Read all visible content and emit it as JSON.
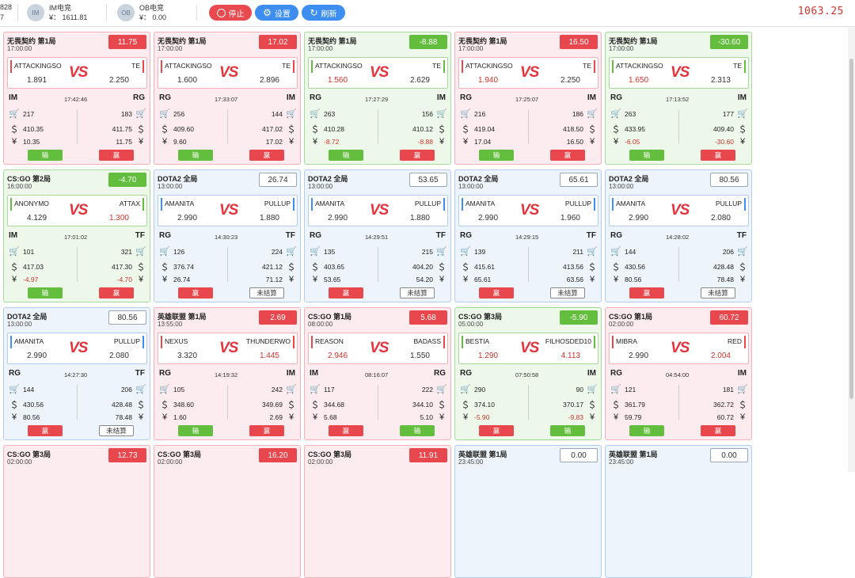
{
  "topbar": {
    "prev_cut_top": "828",
    "prev_cut_bottom": "7",
    "accounts": [
      {
        "avatar": "IM",
        "name": "IM电竞",
        "balance": "¥： 1611.81"
      },
      {
        "avatar": "OB",
        "name": "OB电竞",
        "balance": "¥： 0.00"
      }
    ],
    "buttons": {
      "stop": "停止",
      "settings": "设置",
      "refresh": "刷新"
    },
    "total": "1063.25"
  },
  "colors": {
    "red": "#e8474d",
    "green": "#62be3c",
    "blue": "#3d8ef0"
  },
  "cards": [
    {
      "theme": "red",
      "title": "无畏契约 第1局",
      "time": "17:00:00",
      "pl": "11.75",
      "pl_style": "red",
      "team1": "ATTACKINGSO",
      "team2": "TE",
      "odds1": "1.891",
      "odds2": "2.250",
      "odds1_red": false,
      "bar": "red",
      "left_plat": "IM",
      "right_plat": "RG",
      "clock": "17:42:46",
      "l1": "217",
      "l2": "410.35",
      "l3": "10.35",
      "r1": "183",
      "r2": "411.75",
      "r3": "11.75",
      "btn_left": "输",
      "btn_right": "赢"
    },
    {
      "theme": "red",
      "title": "无畏契约 第1局",
      "time": "17:00:00",
      "pl": "17.02",
      "pl_style": "red",
      "team1": "ATTACKINGSO",
      "team2": "TE",
      "odds1": "1.600",
      "odds2": "2.896",
      "odds1_red": false,
      "bar": "red",
      "left_plat": "RG",
      "right_plat": "IM",
      "clock": "17:33:07",
      "l1": "256",
      "l2": "409.60",
      "l3": "9.60",
      "r1": "144",
      "r2": "417.02",
      "r3": "17.02",
      "btn_left": "输",
      "btn_right": "赢"
    },
    {
      "theme": "green",
      "title": "无畏契约 第1局",
      "time": "17:00:00",
      "pl": "-8.88",
      "pl_style": "green",
      "team1": "ATTACKINGSO",
      "team2": "TE",
      "odds1": "1.560",
      "odds2": "2.629",
      "odds1_red": true,
      "bar": "green",
      "left_plat": "RG",
      "right_plat": "IM",
      "clock": "17:27:29",
      "l1": "263",
      "l2": "410.28",
      "l3": "-8.72",
      "r1": "156",
      "r2": "410.12",
      "r3": "-8.88",
      "btn_left": "输",
      "btn_right": "赢"
    },
    {
      "theme": "red",
      "title": "无畏契约 第1局",
      "time": "17:00:00",
      "pl": "16.50",
      "pl_style": "red",
      "team1": "ATTACKINGSO",
      "team2": "TE",
      "odds1": "1.940",
      "odds2": "2.250",
      "odds1_red": true,
      "bar": "red",
      "left_plat": "RG",
      "right_plat": "IM",
      "clock": "17:25:07",
      "l1": "216",
      "l2": "419.04",
      "l3": "17.04",
      "r1": "186",
      "r2": "418.50",
      "r3": "16.50",
      "btn_left": "输",
      "btn_right": "赢"
    },
    {
      "theme": "green",
      "title": "无畏契约 第1局",
      "time": "17:00:00",
      "pl": "-30.60",
      "pl_style": "green",
      "team1": "ATTACKINGSO",
      "team2": "TE",
      "odds1": "1.650",
      "odds2": "2.313",
      "odds1_red": true,
      "bar": "green",
      "left_plat": "RG",
      "right_plat": "IM",
      "clock": "17:13:52",
      "l1": "263",
      "l2": "433.95",
      "l3": "-6.05",
      "r1": "177",
      "r2": "409.40",
      "r3": "-30.60",
      "btn_left": "输",
      "btn_right": "赢"
    },
    {
      "theme": "green",
      "title": "CS:GO 第2局",
      "time": "16:00:00",
      "pl": "-4.70",
      "pl_style": "green",
      "team1": "ANONYMO",
      "team2": "ATTAX",
      "odds1": "4.129",
      "odds2": "1.300",
      "odds1_red": false,
      "odds2_red": true,
      "bar": "green",
      "left_plat": "IM",
      "right_plat": "TF",
      "clock": "17:01:02",
      "l1": "101",
      "l2": "417.03",
      "l3": "-4.97",
      "r1": "321",
      "r2": "417.30",
      "r3": "-4.70",
      "btn_left": "输",
      "btn_right": "赢"
    },
    {
      "theme": "blue",
      "title": "DOTA2 全局",
      "time": "13:00:00",
      "pl": "26.74",
      "pl_style": "white",
      "team1": "AMANITA",
      "team2": "PULLUP",
      "odds1": "2.990",
      "odds2": "1.880",
      "odds1_red": false,
      "bar": "blue",
      "left_plat": "RG",
      "right_plat": "TF",
      "clock": "14:30:23",
      "l1": "126",
      "l2": "376.74",
      "l3": "26.74",
      "r1": "224",
      "r2": "421.12",
      "r3": "71.12",
      "btn_left": "赢",
      "btn_right": "未结算"
    },
    {
      "theme": "blue",
      "title": "DOTA2 全局",
      "time": "13:00:00",
      "pl": "53.65",
      "pl_style": "white",
      "team1": "AMANITA",
      "team2": "PULLUP",
      "odds1": "2.990",
      "odds2": "1.880",
      "odds1_red": false,
      "bar": "blue",
      "left_plat": "RG",
      "right_plat": "TF",
      "clock": "14:29:51",
      "l1": "135",
      "l2": "403.65",
      "l3": "53.65",
      "r1": "215",
      "r2": "404.20",
      "r3": "54.20",
      "btn_left": "赢",
      "btn_right": "未结算"
    },
    {
      "theme": "blue",
      "title": "DOTA2 全局",
      "time": "13:00:00",
      "pl": "65.61",
      "pl_style": "white",
      "team1": "AMANITA",
      "team2": "PULLUP",
      "odds1": "2.990",
      "odds2": "1.960",
      "odds1_red": false,
      "bar": "blue",
      "left_plat": "RG",
      "right_plat": "TF",
      "clock": "14:29:15",
      "l1": "139",
      "l2": "415.61",
      "l3": "65.61",
      "r1": "211",
      "r2": "413.56",
      "r3": "63.56",
      "btn_left": "赢",
      "btn_right": "未结算"
    },
    {
      "theme": "blue",
      "title": "DOTA2 全局",
      "time": "13:00:00",
      "pl": "80.56",
      "pl_style": "white",
      "team1": "AMANITA",
      "team2": "PULLUP",
      "odds1": "2.990",
      "odds2": "2.080",
      "odds1_red": false,
      "bar": "blue",
      "left_plat": "RG",
      "right_plat": "TF",
      "clock": "14:28:02",
      "l1": "144",
      "l2": "430.56",
      "l3": "80.56",
      "r1": "206",
      "r2": "428.48",
      "r3": "78.48",
      "btn_left": "赢",
      "btn_right": "未结算"
    },
    {
      "theme": "blue",
      "title": "DOTA2 全局",
      "time": "13:00:00",
      "pl": "80.56",
      "pl_style": "white",
      "team1": "AMANITA",
      "team2": "PULLUP",
      "odds1": "2.990",
      "odds2": "2.080",
      "odds1_red": false,
      "bar": "blue",
      "left_plat": "RG",
      "right_plat": "TF",
      "clock": "14:27:30",
      "l1": "144",
      "l2": "430.56",
      "l3": "80.56",
      "r1": "206",
      "r2": "428.48",
      "r3": "78.48",
      "btn_left": "赢",
      "btn_right": "未结算"
    },
    {
      "theme": "red",
      "title": "英雄联盟 第1局",
      "time": "13:55:00",
      "pl": "2.69",
      "pl_style": "red",
      "team1": "NEXUS",
      "team2": "THUNDERWO",
      "odds1": "3.320",
      "odds2": "1.445",
      "odds1_red": false,
      "odds2_red": true,
      "bar": "red",
      "left_plat": "RG",
      "right_plat": "IM",
      "clock": "14:19:32",
      "l1": "105",
      "l2": "348.60",
      "l3": "1.60",
      "r1": "242",
      "r2": "349.69",
      "r3": "2.69",
      "btn_left": "输",
      "btn_right": "赢"
    },
    {
      "theme": "red",
      "title": "CS:GO 第1局",
      "time": "08:00:00",
      "pl": "5.68",
      "pl_style": "red",
      "team1": "REASON",
      "team2": "BADASS",
      "odds1": "2.946",
      "odds2": "1.550",
      "odds1_red": true,
      "bar": "red",
      "left_plat": "IM",
      "right_plat": "RG",
      "clock": "08:16:07",
      "l1": "117",
      "l2": "344.68",
      "l3": "5.68",
      "r1": "222",
      "r2": "344.10",
      "r3": "5.10",
      "btn_left": "赢",
      "btn_right": "输"
    },
    {
      "theme": "green",
      "title": "CS:GO 第3局",
      "time": "05:00:00",
      "pl": "-5.90",
      "pl_style": "green",
      "team1": "BESTIA",
      "team2": "FILHOSDED10",
      "odds1": "1.290",
      "odds2": "4.113",
      "odds1_red": true,
      "odds2_red": true,
      "bar": "green",
      "left_plat": "RG",
      "right_plat": "IM",
      "clock": "07:50:58",
      "l1": "290",
      "l2": "374.10",
      "l3": "-5.90",
      "r1": "90",
      "r2": "370.17",
      "r3": "-9.83",
      "btn_left": "赢",
      "btn_right": "输"
    },
    {
      "theme": "red",
      "title": "CS:GO 第1局",
      "time": "02:00:00",
      "pl": "60.72",
      "pl_style": "red",
      "team1": "MIBRA",
      "team2": "RED",
      "odds1": "2.990",
      "odds2": "2.004",
      "odds1_red": false,
      "odds2_red": true,
      "bar": "red",
      "left_plat": "RG",
      "right_plat": "IM",
      "clock": "04:54:00",
      "l1": "121",
      "l2": "361.79",
      "l3": "59.79",
      "r1": "181",
      "r2": "362.72",
      "r3": "60.72",
      "btn_left": "输",
      "btn_right": "赢"
    },
    {
      "theme": "red",
      "title": "CS:GO 第3局",
      "time": "02:00:00",
      "pl": "12.73",
      "pl_style": "red",
      "partial": true
    },
    {
      "theme": "red",
      "title": "CS:GO 第3局",
      "time": "02:00:00",
      "pl": "16.20",
      "pl_style": "red",
      "partial": true
    },
    {
      "theme": "red",
      "title": "CS:GO 第3局",
      "time": "02:00:00",
      "pl": "11.91",
      "pl_style": "red",
      "partial": true
    },
    {
      "theme": "blue",
      "title": "英雄联盟 第1局",
      "time": "23:45:00",
      "pl": "0.00",
      "pl_style": "white",
      "partial": true
    },
    {
      "theme": "blue",
      "title": "英雄联盟 第1局",
      "time": "23:45:00",
      "pl": "0.00",
      "pl_style": "white",
      "partial": true
    }
  ]
}
